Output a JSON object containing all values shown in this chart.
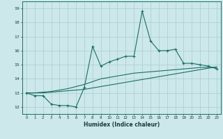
{
  "xlabel": "Humidex (Indice chaleur)",
  "bg_color": "#cce8ea",
  "grid_color": "#b0d0d4",
  "line_color": "#1a6e64",
  "xlim": [
    -0.5,
    23.5
  ],
  "ylim": [
    11.5,
    19.5
  ],
  "xticks": [
    0,
    1,
    2,
    3,
    4,
    5,
    6,
    7,
    8,
    9,
    10,
    11,
    12,
    13,
    14,
    15,
    16,
    17,
    18,
    19,
    20,
    21,
    22,
    23
  ],
  "yticks": [
    12,
    13,
    14,
    15,
    16,
    17,
    18,
    19
  ],
  "series1_x": [
    0,
    1,
    2,
    3,
    4,
    5,
    6,
    7,
    8,
    9,
    10,
    11,
    12,
    13,
    14,
    15,
    16,
    17,
    18,
    19,
    20,
    21,
    22,
    23
  ],
  "series1_y": [
    13.0,
    12.8,
    12.8,
    12.2,
    12.1,
    12.1,
    12.0,
    13.4,
    16.3,
    14.9,
    15.2,
    15.4,
    15.6,
    15.6,
    18.8,
    16.7,
    16.0,
    16.0,
    16.1,
    15.1,
    15.1,
    15.0,
    14.9,
    14.7
  ],
  "series2_x": [
    0,
    1,
    2,
    3,
    4,
    5,
    6,
    7,
    8,
    9,
    10,
    11,
    12,
    13,
    14,
    15,
    16,
    17,
    18,
    19,
    20,
    21,
    22,
    23
  ],
  "series2_y": [
    13.0,
    13.0,
    13.0,
    13.05,
    13.1,
    13.15,
    13.2,
    13.25,
    13.35,
    13.45,
    13.55,
    13.65,
    13.75,
    13.85,
    13.95,
    14.05,
    14.15,
    14.25,
    14.35,
    14.45,
    14.55,
    14.65,
    14.75,
    14.85
  ],
  "series3_x": [
    0,
    1,
    2,
    3,
    4,
    5,
    6,
    7,
    8,
    9,
    10,
    11,
    12,
    13,
    14,
    15,
    16,
    17,
    18,
    19,
    20,
    21,
    22,
    23
  ],
  "series3_y": [
    13.0,
    13.0,
    13.05,
    13.1,
    13.2,
    13.3,
    13.45,
    13.6,
    13.8,
    14.0,
    14.1,
    14.2,
    14.3,
    14.4,
    14.45,
    14.5,
    14.55,
    14.6,
    14.65,
    14.7,
    14.75,
    14.8,
    14.82,
    14.8
  ]
}
